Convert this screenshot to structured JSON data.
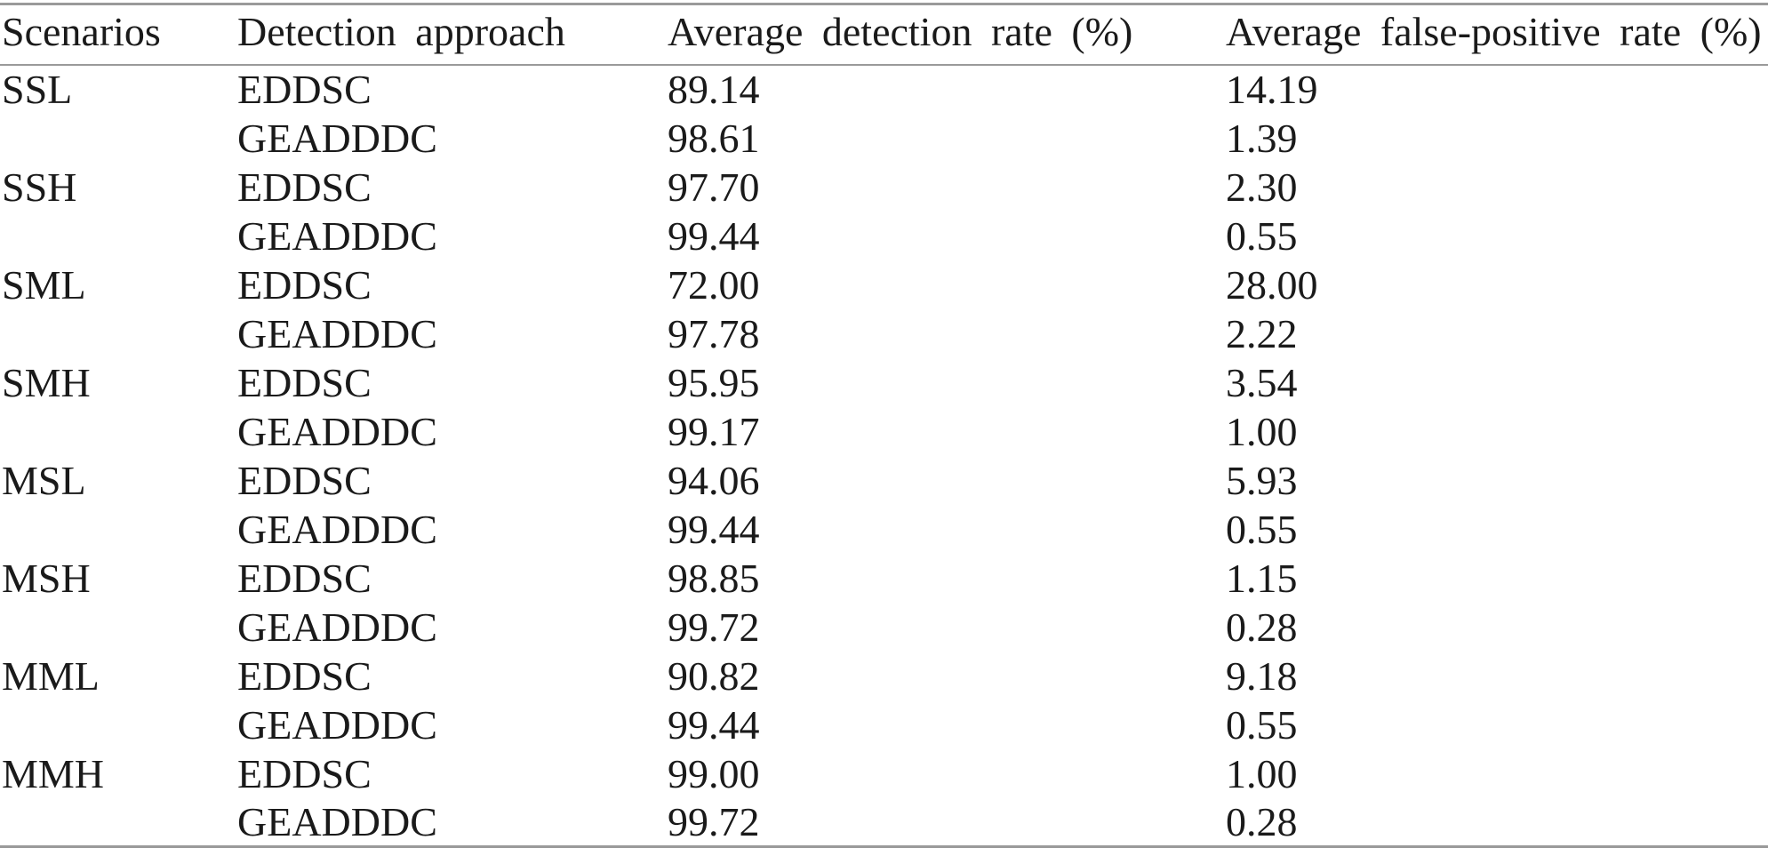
{
  "table": {
    "columns": [
      "Scenarios",
      "Detection approach",
      "Average detection rate (%)",
      "Average false-positive rate (%)"
    ],
    "rows": [
      {
        "scenario": "SSL",
        "approach": "EDDSC",
        "detection_rate": "89.14",
        "false_positive_rate": "14.19"
      },
      {
        "scenario": "",
        "approach": "GEADDDC",
        "detection_rate": "98.61",
        "false_positive_rate": "1.39"
      },
      {
        "scenario": "SSH",
        "approach": "EDDSC",
        "detection_rate": "97.70",
        "false_positive_rate": "2.30"
      },
      {
        "scenario": "",
        "approach": "GEADDDC",
        "detection_rate": "99.44",
        "false_positive_rate": "0.55"
      },
      {
        "scenario": "SML",
        "approach": "EDDSC",
        "detection_rate": "72.00",
        "false_positive_rate": "28.00"
      },
      {
        "scenario": "",
        "approach": "GEADDDC",
        "detection_rate": "97.78",
        "false_positive_rate": "2.22"
      },
      {
        "scenario": "SMH",
        "approach": "EDDSC",
        "detection_rate": "95.95",
        "false_positive_rate": "3.54"
      },
      {
        "scenario": "",
        "approach": "GEADDDC",
        "detection_rate": "99.17",
        "false_positive_rate": "1.00"
      },
      {
        "scenario": "MSL",
        "approach": "EDDSC",
        "detection_rate": "94.06",
        "false_positive_rate": "5.93"
      },
      {
        "scenario": "",
        "approach": "GEADDDC",
        "detection_rate": "99.44",
        "false_positive_rate": "0.55"
      },
      {
        "scenario": "MSH",
        "approach": "EDDSC",
        "detection_rate": "98.85",
        "false_positive_rate": "1.15"
      },
      {
        "scenario": "",
        "approach": "GEADDDC",
        "detection_rate": "99.72",
        "false_positive_rate": "0.28"
      },
      {
        "scenario": "MML",
        "approach": "EDDSC",
        "detection_rate": "90.82",
        "false_positive_rate": "9.18"
      },
      {
        "scenario": "",
        "approach": "GEADDDC",
        "detection_rate": "99.44",
        "false_positive_rate": "0.55"
      },
      {
        "scenario": "MMH",
        "approach": "EDDSC",
        "detection_rate": "99.00",
        "false_positive_rate": "1.00"
      },
      {
        "scenario": "",
        "approach": "GEADDDC",
        "detection_rate": "99.72",
        "false_positive_rate": "0.28"
      }
    ]
  },
  "colors": {
    "text": "#1a1a1a",
    "rule": "#9a9a9a",
    "background": "#ffffff"
  }
}
